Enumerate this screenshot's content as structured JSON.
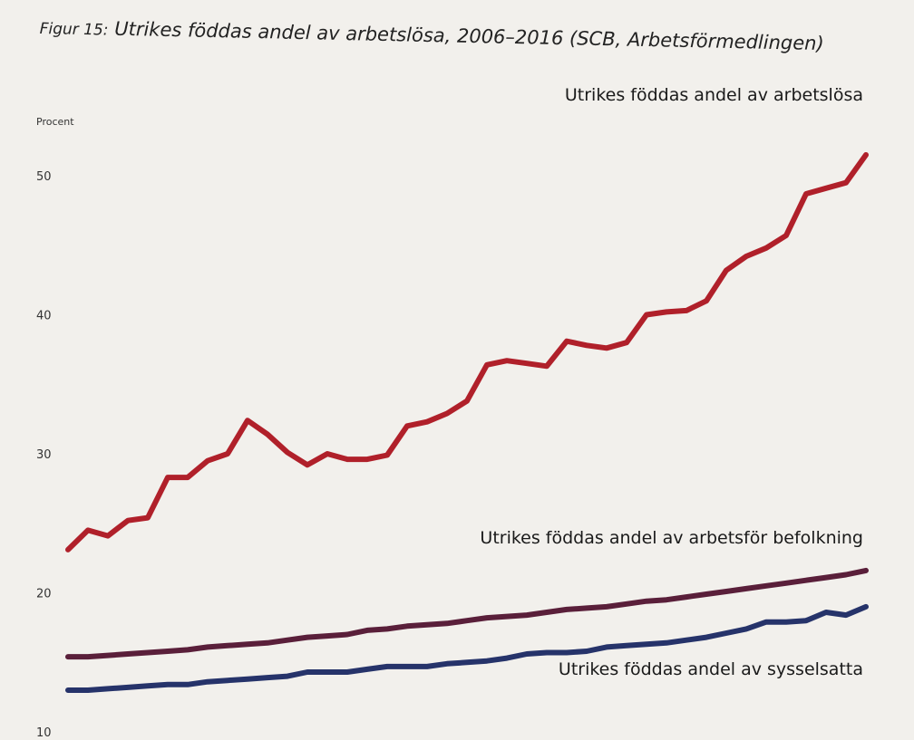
{
  "figure": {
    "label": "Figur 15:",
    "title": "Utrikes föddas andel av arbetslösa, 2006–2016 (SCB, Arbetsförmedlingen)"
  },
  "chart_data": {
    "type": "line",
    "title": "Utrikes föddas andel av arbetslösa, 2006–2016 (SCB, Arbetsförmedlingen)",
    "ylabel": "Procent",
    "xlabel": "",
    "ylim": [
      10,
      52
    ],
    "yticks": [
      "10",
      "20",
      "30",
      "40",
      "50"
    ],
    "grid": false,
    "legend": "inline-labels",
    "x": [
      2006.0,
      2006.25,
      2006.5,
      2006.75,
      2007.0,
      2007.25,
      2007.5,
      2007.75,
      2008.0,
      2008.25,
      2008.5,
      2008.75,
      2009.0,
      2009.25,
      2009.5,
      2009.75,
      2010.0,
      2010.25,
      2010.5,
      2010.75,
      2011.0,
      2011.25,
      2011.5,
      2011.75,
      2012.0,
      2012.25,
      2012.5,
      2012.75,
      2013.0,
      2013.25,
      2013.5,
      2013.75,
      2014.0,
      2014.25,
      2014.5,
      2014.75,
      2015.0,
      2015.25,
      2015.5,
      2015.75,
      2016.0
    ],
    "series": [
      {
        "name": "Utrikes föddas andel av arbetslösa",
        "color": "#b0202a",
        "values": [
          23.1,
          24.5,
          24.1,
          25.2,
          25.4,
          28.3,
          28.3,
          29.5,
          30.0,
          32.4,
          31.4,
          30.1,
          29.2,
          30.0,
          29.6,
          29.6,
          29.9,
          32.0,
          32.3,
          32.9,
          33.8,
          36.4,
          36.7,
          36.5,
          36.3,
          38.1,
          37.8,
          37.6,
          38.0,
          40.0,
          40.2,
          40.3,
          41.0,
          43.2,
          44.2,
          44.8,
          45.7,
          48.7,
          49.1,
          49.5,
          51.5
        ]
      },
      {
        "name": "Utrikes föddas andel av arbetsför befolkning",
        "color": "#5a1f3a",
        "values": [
          15.4,
          15.4,
          15.5,
          15.6,
          15.7,
          15.8,
          15.9,
          16.1,
          16.2,
          16.3,
          16.4,
          16.6,
          16.8,
          16.9,
          17.0,
          17.3,
          17.4,
          17.6,
          17.7,
          17.8,
          18.0,
          18.2,
          18.3,
          18.4,
          18.6,
          18.8,
          18.9,
          19.0,
          19.2,
          19.4,
          19.5,
          19.7,
          19.9,
          20.1,
          20.3,
          20.5,
          20.7,
          20.9,
          21.1,
          21.3,
          21.6
        ]
      },
      {
        "name": "Utrikes föddas andel av sysselsatta",
        "color": "#26336a",
        "values": [
          13.0,
          13.0,
          13.1,
          13.2,
          13.3,
          13.4,
          13.4,
          13.6,
          13.7,
          13.8,
          13.9,
          14.0,
          14.3,
          14.3,
          14.3,
          14.5,
          14.7,
          14.7,
          14.7,
          14.9,
          15.0,
          15.1,
          15.3,
          15.6,
          15.7,
          15.7,
          15.8,
          16.1,
          16.2,
          16.3,
          16.4,
          16.6,
          16.8,
          17.1,
          17.4,
          17.9,
          17.9,
          18.0,
          18.6,
          18.4,
          19.0
        ]
      }
    ]
  }
}
